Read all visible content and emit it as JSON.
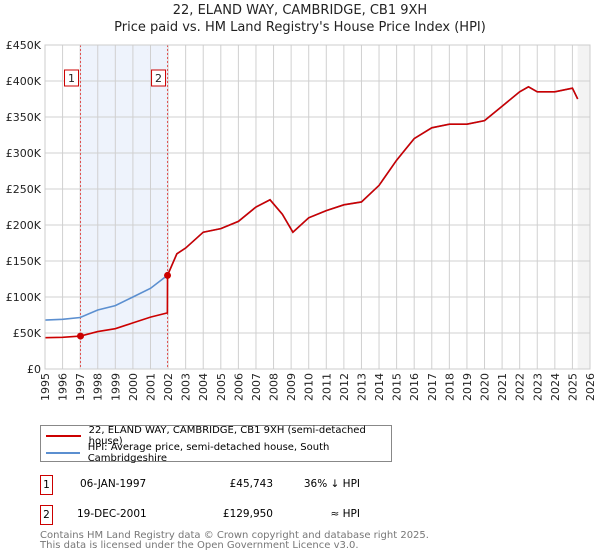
{
  "title": "22, ELAND WAY, CAMBRIDGE, CB1 9XH",
  "subtitle": "Price paid vs. HM Land Registry's House Price Index (HPI)",
  "chart_data": {
    "type": "line",
    "title": "22, ELAND WAY, CAMBRIDGE, CB1 9XH",
    "xlim": [
      1995,
      2026
    ],
    "ylim": [
      0,
      450000
    ],
    "x_ticks": [
      "1995",
      "1996",
      "1997",
      "1998",
      "1999",
      "2000",
      "2001",
      "2002",
      "2003",
      "2004",
      "2005",
      "2006",
      "2007",
      "2008",
      "2009",
      "2010",
      "2011",
      "2012",
      "2013",
      "2014",
      "2015",
      "2016",
      "2017",
      "2018",
      "2019",
      "2020",
      "2021",
      "2022",
      "2023",
      "2024",
      "2025",
      "2026"
    ],
    "y_ticks": [
      {
        "v": 0,
        "label": "£0"
      },
      {
        "v": 50000,
        "label": "£50K"
      },
      {
        "v": 100000,
        "label": "£100K"
      },
      {
        "v": 150000,
        "label": "£150K"
      },
      {
        "v": 200000,
        "label": "£200K"
      },
      {
        "v": 250000,
        "label": "£250K"
      },
      {
        "v": 300000,
        "label": "£300K"
      },
      {
        "v": 350000,
        "label": "£350K"
      },
      {
        "v": 400000,
        "label": "£400K"
      },
      {
        "v": 450000,
        "label": "£450K"
      }
    ],
    "series": [
      {
        "name": "22, ELAND WAY, CAMBRIDGE, CB1 9XH (semi-detached house)",
        "color": "#cc0000",
        "x": [
          1995,
          1996,
          1997.02,
          1998,
          1999,
          2000,
          2001,
          2001.96,
          2001.97,
          2002.5,
          2003,
          2004,
          2005,
          2006,
          2007,
          2007.8,
          2008.5,
          2009.1,
          2010,
          2011,
          2012,
          2013,
          2014,
          2015,
          2015.5,
          2016,
          2017,
          2018,
          2019,
          2020,
          2021,
          2022,
          2022.5,
          2023,
          2024,
          2025,
          2025.3
        ],
        "y": [
          43500,
          44000,
          45743,
          52000,
          56000,
          64000,
          72000,
          78000,
          129950,
          160000,
          168000,
          190000,
          195000,
          205000,
          225000,
          235000,
          215000,
          190000,
          210000,
          220000,
          228000,
          232000,
          255000,
          290000,
          305000,
          320000,
          335000,
          340000,
          340000,
          345000,
          365000,
          385000,
          392000,
          385000,
          385000,
          390000,
          375000
        ]
      },
      {
        "name": "HPI: Average price, semi-detached house, South Cambridgeshire",
        "color": "#5b8fd0",
        "x": [
          1995,
          1996,
          1997,
          1998,
          1999,
          2000,
          2001,
          2001.96,
          2002.5,
          2003,
          2004,
          2005,
          2006,
          2007,
          2007.8,
          2008.5,
          2009.1,
          2010,
          2011,
          2012,
          2013,
          2014,
          2015,
          2015.5,
          2016,
          2017,
          2018,
          2019,
          2020,
          2021,
          2022,
          2022.5,
          2023,
          2024,
          2025,
          2025.3
        ],
        "y": [
          68000,
          69000,
          71500,
          82000,
          88000,
          100000,
          112000,
          130000,
          160000,
          168000,
          190000,
          195000,
          205000,
          225000,
          235000,
          215000,
          190000,
          210000,
          220000,
          228000,
          232000,
          255000,
          290000,
          305000,
          320000,
          335000,
          340000,
          340000,
          345000,
          365000,
          385000,
          392000,
          385000,
          385000,
          390000,
          375000
        ]
      }
    ],
    "sales": [
      {
        "id": "1",
        "x": 1997.02,
        "y": 45743
      },
      {
        "id": "2",
        "x": 2001.97,
        "y": 129950
      }
    ]
  },
  "legend": {
    "red": "22, ELAND WAY, CAMBRIDGE, CB1 9XH (semi-detached house)",
    "blue": "HPI: Average price, semi-detached house, South Cambridgeshire"
  },
  "transactions": [
    {
      "id": "1",
      "date": "06-JAN-1997",
      "price": "£45,743",
      "hpi": "36% ↓ HPI"
    },
    {
      "id": "2",
      "date": "19-DEC-2001",
      "price": "£129,950",
      "hpi": "≈ HPI"
    }
  ],
  "footer": {
    "line1": "Contains HM Land Registry data © Crown copyright and database right 2025.",
    "line2": "This data is licensed under the Open Government Licence v3.0."
  }
}
